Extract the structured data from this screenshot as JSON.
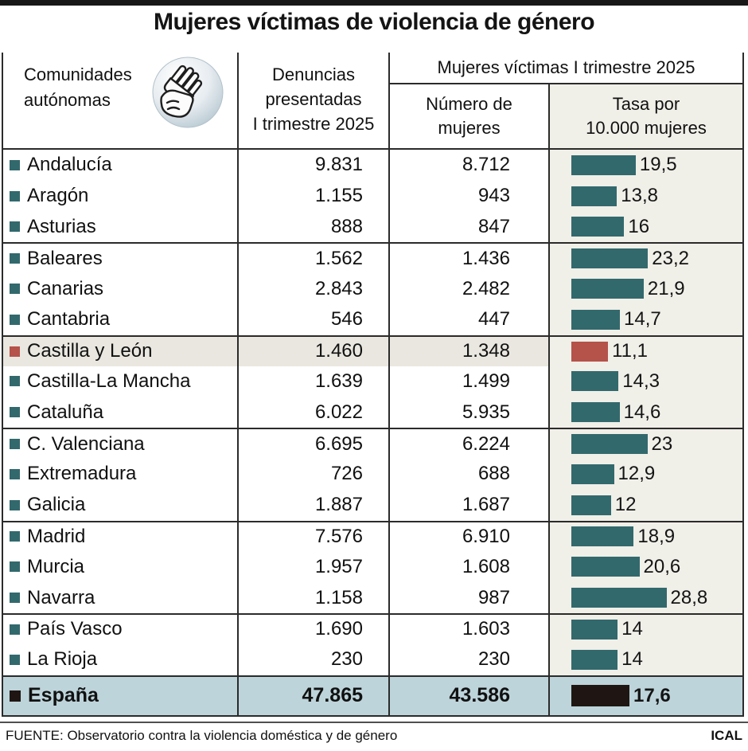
{
  "title": "Mujeres víctimas de violencia de género",
  "header": {
    "communities_line1": "Comunidades",
    "communities_line2": "autónomas",
    "complaints_line1": "Denuncias",
    "complaints_line2": "presentadas",
    "complaints_line3": "I trimestre 2025",
    "victims_span": "Mujeres víctimas I trimestre 2025",
    "number_line1": "Número de",
    "number_line2": "mujeres",
    "rate_line1": "Tasa por",
    "rate_line2": "10.000 mujeres",
    "icon": "stop-hand-icon"
  },
  "colors": {
    "teal": "#32696d",
    "red": "#b5524a",
    "black": "#1f1613",
    "rate_column_bg": "#f0efe8",
    "highlight_row_bg": "#e9e7df",
    "total_row_bg": "#bdd4da",
    "top_bar": "#181818"
  },
  "table": {
    "rows": [
      {
        "name": "Andalucía",
        "denuncias": "9.831",
        "victimas": "8.712",
        "tasa": "19,5",
        "tasa_value": 19.5,
        "color": "teal",
        "sep_before": false,
        "highlight": false
      },
      {
        "name": "Aragón",
        "denuncias": "1.155",
        "victimas": "943",
        "tasa": "13,8",
        "tasa_value": 13.8,
        "color": "teal",
        "sep_before": false,
        "highlight": false
      },
      {
        "name": "Asturias",
        "denuncias": "888",
        "victimas": "847",
        "tasa": "16",
        "tasa_value": 16.0,
        "color": "teal",
        "sep_before": false,
        "highlight": false
      },
      {
        "name": "Baleares",
        "denuncias": "1.562",
        "victimas": "1.436",
        "tasa": "23,2",
        "tasa_value": 23.2,
        "color": "teal",
        "sep_before": true,
        "highlight": false
      },
      {
        "name": "Canarias",
        "denuncias": "2.843",
        "victimas": "2.482",
        "tasa": "21,9",
        "tasa_value": 21.9,
        "color": "teal",
        "sep_before": false,
        "highlight": false
      },
      {
        "name": "Cantabria",
        "denuncias": "546",
        "victimas": "447",
        "tasa": "14,7",
        "tasa_value": 14.7,
        "color": "teal",
        "sep_before": false,
        "highlight": false
      },
      {
        "name": "Castilla y León",
        "denuncias": "1.460",
        "victimas": "1.348",
        "tasa": "11,1",
        "tasa_value": 11.1,
        "color": "red",
        "sep_before": true,
        "highlight": true
      },
      {
        "name": "Castilla-La Mancha",
        "denuncias": "1.639",
        "victimas": "1.499",
        "tasa": "14,3",
        "tasa_value": 14.3,
        "color": "teal",
        "sep_before": false,
        "highlight": false
      },
      {
        "name": "Cataluña",
        "denuncias": "6.022",
        "victimas": "5.935",
        "tasa": "14,6",
        "tasa_value": 14.6,
        "color": "teal",
        "sep_before": false,
        "highlight": false
      },
      {
        "name": "C. Valenciana",
        "denuncias": "6.695",
        "victimas": "6.224",
        "tasa": "23",
        "tasa_value": 23.0,
        "color": "teal",
        "sep_before": true,
        "highlight": false
      },
      {
        "name": "Extremadura",
        "denuncias": "726",
        "victimas": "688",
        "tasa": "12,9",
        "tasa_value": 12.9,
        "color": "teal",
        "sep_before": false,
        "highlight": false
      },
      {
        "name": "Galicia",
        "denuncias": "1.887",
        "victimas": "1.687",
        "tasa": "12",
        "tasa_value": 12.0,
        "color": "teal",
        "sep_before": false,
        "highlight": false
      },
      {
        "name": "Madrid",
        "denuncias": "7.576",
        "victimas": "6.910",
        "tasa": "18,9",
        "tasa_value": 18.9,
        "color": "teal",
        "sep_before": true,
        "highlight": false
      },
      {
        "name": "Murcia",
        "denuncias": "1.957",
        "victimas": "1.608",
        "tasa": "20,6",
        "tasa_value": 20.6,
        "color": "teal",
        "sep_before": false,
        "highlight": false
      },
      {
        "name": "Navarra",
        "denuncias": "1.158",
        "victimas": "987",
        "tasa": "28,8",
        "tasa_value": 28.8,
        "color": "teal",
        "sep_before": false,
        "highlight": false
      },
      {
        "name": "País Vasco",
        "denuncias": "1.690",
        "victimas": "1.603",
        "tasa": "14",
        "tasa_value": 14.0,
        "color": "teal",
        "sep_before": true,
        "highlight": false
      },
      {
        "name": "La Rioja",
        "denuncias": "230",
        "victimas": "230",
        "tasa": "14",
        "tasa_value": 14.0,
        "color": "teal",
        "sep_before": false,
        "highlight": false
      }
    ],
    "total": {
      "name": "España",
      "denuncias": "47.865",
      "victimas": "43.586",
      "tasa": "17,6",
      "tasa_value": 17.6,
      "color": "black",
      "sep_before": false,
      "highlight": false
    }
  },
  "footer": {
    "source": "FUENTE: Observatorio contra la violencia doméstica y de género",
    "credit": "ICAL"
  },
  "chart_data": {
    "type": "bar",
    "title": "Mujeres víctimas de violencia de género",
    "categories": [
      "Andalucía",
      "Aragón",
      "Asturias",
      "Baleares",
      "Canarias",
      "Cantabria",
      "Castilla y León",
      "Castilla-La Mancha",
      "Cataluña",
      "C. Valenciana",
      "Extremadura",
      "Galicia",
      "Madrid",
      "Murcia",
      "Navarra",
      "País Vasco",
      "La Rioja"
    ],
    "series": [
      {
        "name": "Denuncias presentadas I trimestre 2025",
        "values": [
          9831,
          1155,
          888,
          1562,
          2843,
          546,
          1460,
          1639,
          6022,
          6695,
          726,
          1887,
          7576,
          1957,
          1158,
          1690,
          230
        ]
      },
      {
        "name": "Número de mujeres víctimas I trimestre 2025",
        "values": [
          8712,
          943,
          847,
          1436,
          2482,
          447,
          1348,
          1499,
          5935,
          6224,
          688,
          1687,
          6910,
          1608,
          987,
          1603,
          230
        ]
      },
      {
        "name": "Tasa por 10.000 mujeres",
        "values": [
          19.5,
          13.8,
          16,
          23.2,
          21.9,
          14.7,
          11.1,
          14.3,
          14.6,
          23,
          12.9,
          12,
          18.9,
          20.6,
          28.8,
          14,
          14
        ]
      }
    ],
    "total": {
      "category": "España",
      "denuncias": 47865,
      "victimas": 43586,
      "tasa": 17.6
    },
    "highlighted_category": "Castilla y León",
    "bar_axis": {
      "min": 0,
      "max_shown": 28.8
    },
    "legend_position": "none",
    "grid": false
  }
}
